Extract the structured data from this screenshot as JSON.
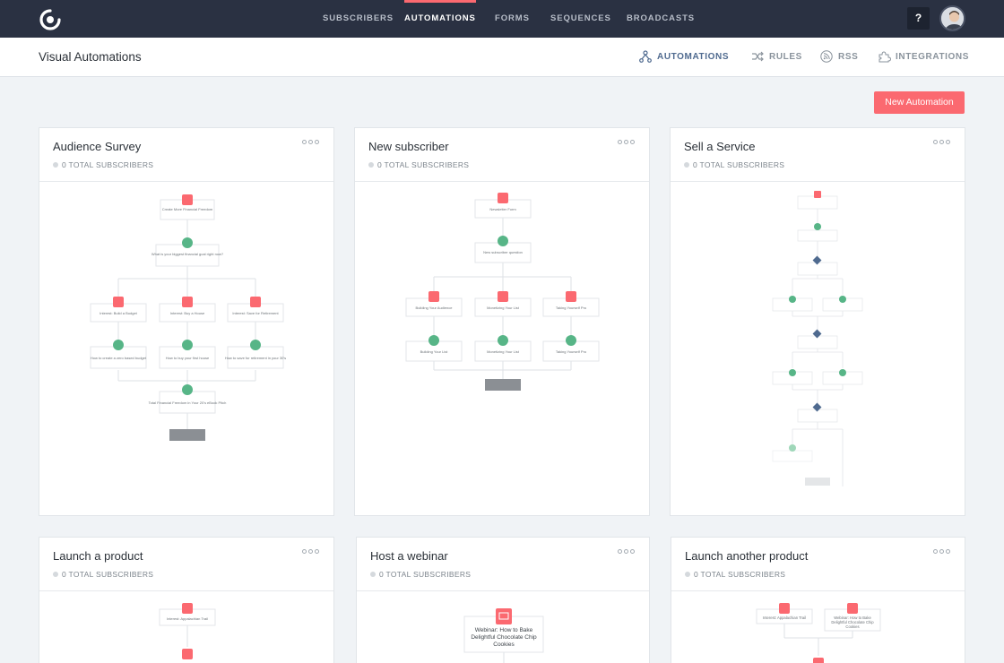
{
  "topnav": {
    "links": [
      {
        "label": "SUBSCRIBERS",
        "active": false
      },
      {
        "label": "AUTOMATIONS",
        "active": true
      },
      {
        "label": "FORMS",
        "active": false
      },
      {
        "label": "SEQUENCES",
        "active": false
      },
      {
        "label": "BROADCASTS",
        "active": false
      }
    ],
    "help_label": "?",
    "logo_icon": "convertkit-logo-icon",
    "avatar_icon": "user-avatar"
  },
  "subnav": {
    "title": "Visual Automations",
    "items": [
      {
        "label": "AUTOMATIONS",
        "icon": "automations-icon",
        "active": true
      },
      {
        "label": "RULES",
        "icon": "rules-icon",
        "active": false
      },
      {
        "label": "RSS",
        "icon": "rss-icon",
        "active": false
      },
      {
        "label": "INTEGRATIONS",
        "icon": "integrations-icon",
        "active": false
      }
    ]
  },
  "new_automation_label": "New Automation",
  "colors": {
    "nav_bg": "#2a3142",
    "accent": "#fb6970",
    "event_node": "#fb6970",
    "action_node": "#57b587",
    "condition_node": "#4f6a8f",
    "end_node": "#8b8f94",
    "page_bg": "#f0f3f6"
  },
  "cards": [
    {
      "title": "Audience Survey",
      "subscribers": "0 TOTAL SUBSCRIBERS"
    },
    {
      "title": "New subscriber",
      "subscribers": "0 TOTAL SUBSCRIBERS"
    },
    {
      "title": "Sell a Service",
      "subscribers": "0 TOTAL SUBSCRIBERS"
    },
    {
      "title": "Launch a product",
      "subscribers": "0 TOTAL SUBSCRIBERS"
    },
    {
      "title": "Host a webinar",
      "subscribers": "0 TOTAL SUBSCRIBERS"
    },
    {
      "title": "Launch another product",
      "subscribers": "0 TOTAL SUBSCRIBERS"
    }
  ],
  "flows": {
    "audience_survey": {
      "nodes": [
        "Create More Financial Freedom",
        "What is your biggest financial goal right now?",
        "Interest: Build a Budget",
        "Interest: Buy a House",
        "Interest: Save for Retirement",
        "How to create a zero based budget",
        "How to buy your first house",
        "How to save for retirement in your 30's",
        "Total Financial Freedom in Your 20's eBook Pitch"
      ]
    },
    "new_subscriber": {
      "nodes": [
        "Newsletter Form",
        "New subscriber question",
        "Building Your Audience",
        "Monetizing Your List",
        "Taking Yourself Pro",
        "Building Your List",
        "Monetizing Your List",
        "Taking Yourself Pro"
      ]
    },
    "launch_product": {
      "nodes": [
        "Interest: Appalachian Trail"
      ]
    },
    "host_webinar": {
      "nodes": [
        "Webinar: How to Bake Delightful Chocolate Chip Cookies"
      ]
    },
    "launch_another": {
      "nodes": [
        "Interest: Appalachian Trail",
        "Webinar: How to Bake Delightful Chocolate Chip Cookies"
      ]
    }
  }
}
